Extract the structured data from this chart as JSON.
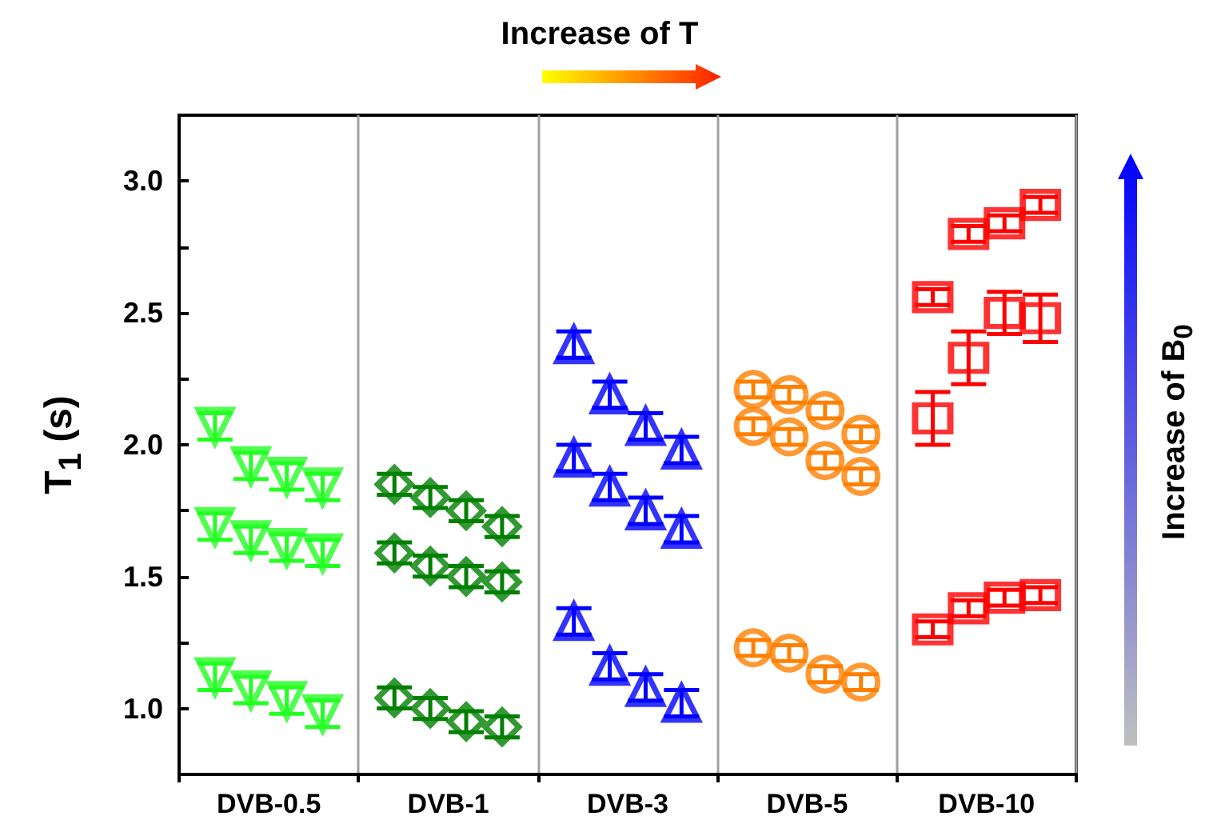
{
  "chart_data": {
    "type": "scatter",
    "ylabel": "T$_{1}$ (s)",
    "categories": [
      "DVB-0.5",
      "DVB-1",
      "DVB-3",
      "DVB-5",
      "DVB-10"
    ],
    "grid": "x",
    "ylim": [
      0.75,
      3.25
    ],
    "yticks": [
      {
        "value": 1,
        "label": "1.0"
      },
      {
        "value": 1.25,
        "label": null
      },
      {
        "value": 1.5,
        "label": "1.5"
      },
      {
        "value": 1.75,
        "label": null
      },
      {
        "value": 2,
        "label": "2.0"
      },
      {
        "value": 2.25,
        "label": null
      },
      {
        "value": 2.5,
        "label": "2.5"
      },
      {
        "value": 2.75,
        "label": null
      },
      {
        "value": 3,
        "label": "3.0"
      }
    ],
    "annotations": [
      "Increase of T",
      "Increase of B$_{0}$"
    ],
    "series": [
      {
        "color": "#22ff22",
        "marker": "triangle_down",
        "x": [
          "DVB-0.5",
          "DVB-0.5",
          "DVB-0.5",
          "DVB-0.5",
          "DVB-0.5",
          "DVB-0.5",
          "DVB-0.5",
          "DVB-0.5",
          "DVB-0.5",
          "DVB-0.5",
          "DVB-0.5",
          "DVB-0.5"
        ],
        "values": [
          2.07,
          1.92,
          1.88,
          1.84,
          1.69,
          1.64,
          1.61,
          1.59,
          1.12,
          1.07,
          1.03,
          0.98
        ],
        "errors": [
          0.05,
          0.05,
          0.05,
          0.05,
          0.05,
          0.05,
          0.05,
          0.05,
          0.05,
          0.05,
          0.05,
          0.05
        ]
      },
      {
        "color": "#007f00",
        "marker": "diamond",
        "x": [
          "DVB-1",
          "DVB-1",
          "DVB-1",
          "DVB-1",
          "DVB-1",
          "DVB-1",
          "DVB-1",
          "DVB-1",
          "DVB-1",
          "DVB-1",
          "DVB-1",
          "DVB-1"
        ],
        "values": [
          1.85,
          1.8,
          1.75,
          1.69,
          1.59,
          1.54,
          1.5,
          1.48,
          1.04,
          1,
          0.95,
          0.93
        ],
        "errors": [
          0.04,
          0.04,
          0.04,
          0.04,
          0.04,
          0.04,
          0.04,
          0.04,
          0.04,
          0.04,
          0.04,
          0.04
        ]
      },
      {
        "color": "#0000ff",
        "marker": "triangle",
        "x": [
          "DVB-3",
          "DVB-3",
          "DVB-3",
          "DVB-3",
          "DVB-3",
          "DVB-3",
          "DVB-3",
          "DVB-3",
          "DVB-3",
          "DVB-3",
          "DVB-3",
          "DVB-3"
        ],
        "values": [
          2.38,
          2.19,
          2.07,
          1.98,
          1.95,
          1.84,
          1.75,
          1.68,
          1.33,
          1.16,
          1.08,
          1.02
        ],
        "errors": [
          0.05,
          0.05,
          0.05,
          0.05,
          0.05,
          0.05,
          0.05,
          0.05,
          0.05,
          0.05,
          0.05,
          0.05
        ]
      },
      {
        "color": "#ff8000",
        "marker": "circle",
        "x": [
          "DVB-5",
          "DVB-5",
          "DVB-5",
          "DVB-5",
          "DVB-5",
          "DVB-5",
          "DVB-5",
          "DVB-5",
          "DVB-5",
          "DVB-5",
          "DVB-5",
          "DVB-5"
        ],
        "values": [
          2.21,
          2.19,
          2.13,
          2.04,
          2.07,
          2.03,
          1.94,
          1.88,
          1.23,
          1.21,
          1.13,
          1.1
        ],
        "errors": [
          0.03,
          0.03,
          0.03,
          0.03,
          0.03,
          0.03,
          0.03,
          0.03,
          0.03,
          0.03,
          0.03,
          0.03
        ]
      },
      {
        "color": "#ff0000",
        "marker": "square",
        "x": [
          "DVB-10",
          "DVB-10",
          "DVB-10",
          "DVB-10",
          "DVB-10",
          "DVB-10",
          "DVB-10",
          "DVB-10",
          "DVB-10",
          "DVB-10",
          "DVB-10",
          "DVB-10"
        ],
        "values": [
          2.56,
          2.8,
          2.84,
          2.91,
          2.1,
          2.33,
          2.5,
          2.48,
          1.3,
          1.38,
          1.42,
          1.43
        ],
        "errors": [
          0.03,
          0.03,
          0.03,
          0.03,
          0.1,
          0.1,
          0.08,
          0.09,
          0.03,
          0.03,
          0.03,
          0.03
        ]
      }
    ]
  }
}
